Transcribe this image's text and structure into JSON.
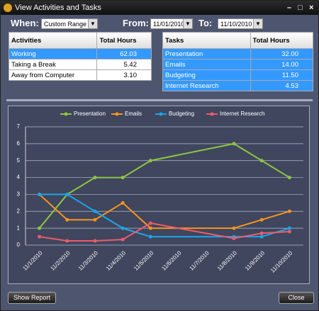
{
  "window": {
    "title": "View Activities and Tasks"
  },
  "filters": {
    "when_label": "When:",
    "when_value": "Custom Range",
    "from_label": "From:",
    "from_value": "11/01/2010",
    "to_label": "To:",
    "to_value": "11/10/2010"
  },
  "activities": {
    "headers": [
      "Activities",
      "Total Hours"
    ],
    "rows": [
      [
        "Working",
        "62.03"
      ],
      [
        "Taking a Break",
        "5.42"
      ],
      [
        "Away from Computer",
        "3.10"
      ]
    ],
    "selected_rows": [
      0
    ]
  },
  "tasks": {
    "headers": [
      "Tasks",
      "Total Hours"
    ],
    "rows": [
      [
        "Presentation",
        "32.00"
      ],
      [
        "Emails",
        "14.00"
      ],
      [
        "Budgeting",
        "11.50"
      ],
      [
        "Internet Research",
        "4.53"
      ]
    ],
    "selected_rows": [
      0,
      1,
      2,
      3
    ]
  },
  "chart_data": {
    "type": "line",
    "categories": [
      "11/1/2010",
      "11/2/2010",
      "11/3/2010",
      "11/4/2010",
      "11/5/2010",
      "11/6/2010",
      "11/7/2010",
      "11/8/2010",
      "11/9/2010",
      "11/10/2010"
    ],
    "series": [
      {
        "name": "Presentation",
        "color": "#8dc63f",
        "x": [
          "11/1/2010",
          "11/2/2010",
          "11/3/2010",
          "11/4/2010",
          "11/5/2010",
          "11/8/2010",
          "11/9/2010",
          "11/10/2010"
        ],
        "values": [
          1,
          3,
          4,
          4,
          5,
          6,
          5,
          4
        ]
      },
      {
        "name": "Emails",
        "color": "#f7941d",
        "x": [
          "11/1/2010",
          "11/2/2010",
          "11/3/2010",
          "11/4/2010",
          "11/5/2010",
          "11/8/2010",
          "11/9/2010",
          "11/10/2010"
        ],
        "values": [
          3,
          1.5,
          1.5,
          2.5,
          1,
          1,
          1.5,
          2
        ]
      },
      {
        "name": "Budgeting",
        "color": "#1ca5e8",
        "x": [
          "11/1/2010",
          "11/2/2010",
          "11/3/2010",
          "11/4/2010",
          "11/5/2010",
          "11/8/2010",
          "11/9/2010",
          "11/10/2010"
        ],
        "values": [
          3,
          3,
          2,
          1,
          0.5,
          0.5,
          0.5,
          1
        ]
      },
      {
        "name": "Internet Research",
        "color": "#ef5b6b",
        "x": [
          "11/1/2010",
          "11/2/2010",
          "11/3/2010",
          "11/4/2010",
          "11/5/2010",
          "11/8/2010",
          "11/9/2010",
          "11/10/2010"
        ],
        "values": [
          0.5,
          0.25,
          0.25,
          0.33,
          1.3,
          0.4,
          0.7,
          0.8
        ]
      }
    ],
    "ylim": [
      0,
      7
    ],
    "yticks": [
      0,
      1,
      2,
      3,
      4,
      5,
      6,
      7
    ],
    "grid": true,
    "legend": "top"
  },
  "buttons": {
    "show_report": "Show Report",
    "close": "Close"
  }
}
